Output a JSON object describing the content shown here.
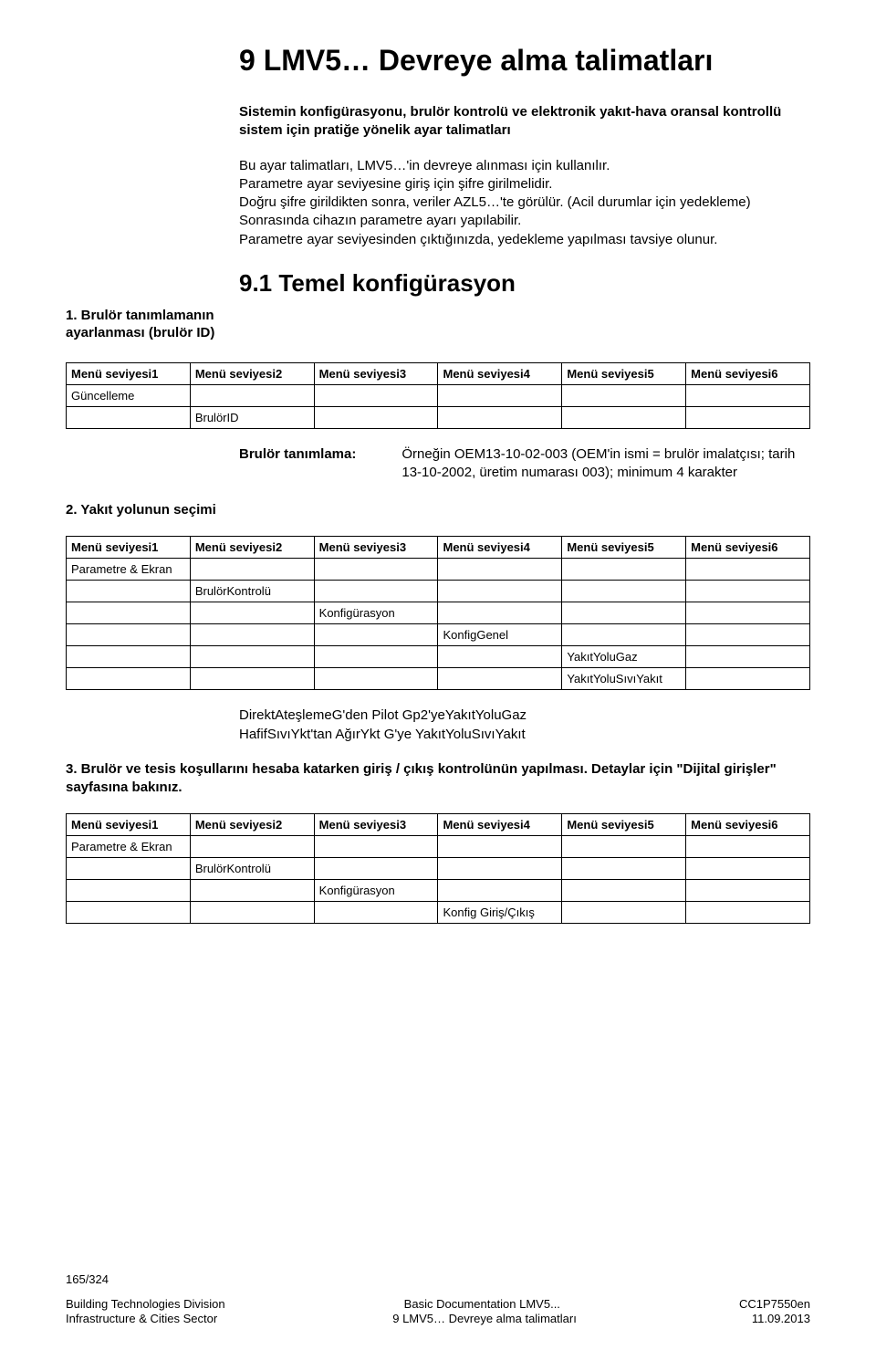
{
  "title": "9  LMV5… Devreye alma talimatları",
  "intro_bold": "Sistemin konfigürasyonu, brulör kontrolü ve elektronik yakıt-hava oransal kontrollü sistem için pratiğe yönelik ayar talimatları",
  "intro_text": "Bu ayar talimatları, LMV5…'in devreye alınması için kullanılır.\nParametre ayar seviyesine giriş için şifre girilmelidir.\nDoğru şifre girildikten sonra, veriler AZL5…'te görülür. (Acil durumlar için yedekleme) Sonrasında cihazın parametre ayarı yapılabilir.\nParametre ayar seviyesinden çıktığınızda, yedekleme yapılması tavsiye olunur.",
  "section_title": "9.1 Temel konfigürasyon",
  "step1_side": "1. Brulör tanımlamanın ayarlanması (brulör ID)",
  "menu_headers": [
    "Menü seviyesi1",
    "Menü seviyesi2",
    "Menü seviyesi3",
    "Menü seviyesi4",
    "Menü seviyesi5",
    "Menü seviyesi6"
  ],
  "table1": [
    [
      "Güncelleme",
      "",
      "",
      "",
      "",
      ""
    ],
    [
      "",
      "BrulörID",
      "",
      "",
      "",
      ""
    ]
  ],
  "def1_term": "Brulör tanımlama:",
  "def1_desc": "Örneğin OEM13-10-02-003 (OEM'in ismi = brulör imalatçısı; tarih 13-10-2002, üretim numarası 003); minimum 4 karakter",
  "step2_label": "2. Yakıt yolunun seçimi",
  "table2": [
    [
      "Parametre & Ekran",
      "",
      "",
      "",
      "",
      ""
    ],
    [
      "",
      "BrulörKontrolü",
      "",
      "",
      "",
      ""
    ],
    [
      "",
      "",
      "Konfigürasyon",
      "",
      "",
      ""
    ],
    [
      "",
      "",
      "",
      "KonfigGenel",
      "",
      ""
    ],
    [
      "",
      "",
      "",
      "",
      "YakıtYoluGaz",
      ""
    ],
    [
      "",
      "",
      "",
      "",
      "YakıtYoluSıvıYakıt",
      ""
    ]
  ],
  "between1": "DirektAteşlemeG'den Pilot Gp2'yeYakıtYoluGaz",
  "between2": "HafifSıvıYkt'tan AğırYkt G'ye YakıtYoluSıvıYakıt",
  "step3_text": "3. Brulör ve tesis koşullarını hesaba katarken giriş / çıkış kontrolünün yapılması. Detaylar için \"Dijital girişler\" sayfasına bakınız.",
  "table3": [
    [
      "Parametre & Ekran",
      "",
      "",
      "",
      "",
      ""
    ],
    [
      "",
      "BrulörKontrolü",
      "",
      "",
      "",
      ""
    ],
    [
      "",
      "",
      "Konfigürasyon",
      "",
      "",
      ""
    ],
    [
      "",
      "",
      "",
      "Konfig Giriş/Çıkış",
      "",
      ""
    ]
  ],
  "footer": {
    "page_no": "165/324",
    "left1": "Building Technologies Division",
    "left2": "Infrastructure & Cities Sector",
    "mid1": "Basic Documentation LMV5...",
    "mid2": "9 LMV5… Devreye alma talimatları",
    "right1": "CC1P7550en",
    "right2": "11.09.2013"
  }
}
